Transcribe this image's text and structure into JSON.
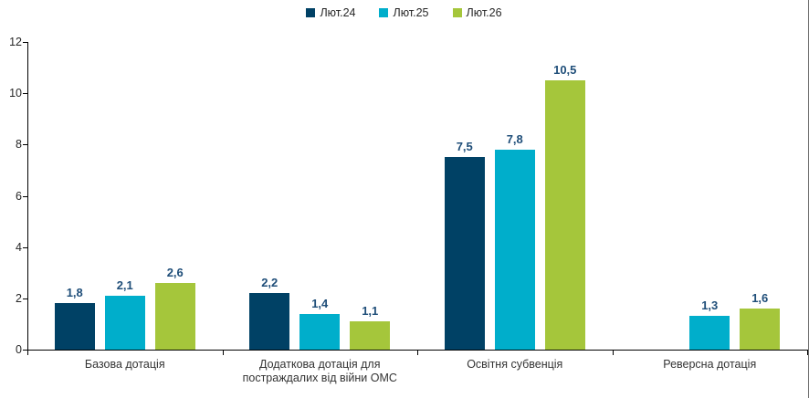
{
  "chart_data": {
    "type": "bar",
    "title": "",
    "categories": [
      "Базова дотація",
      "Додаткова дотація для постраждалих від війни ОМС",
      "Освітня субвенція",
      "Реверсна дотація"
    ],
    "series": [
      {
        "name": "Лют.24",
        "color": "#004165",
        "values": [
          1.8,
          2.2,
          7.5,
          null
        ],
        "labels": [
          "1,8",
          "2,2",
          "7,5",
          ""
        ]
      },
      {
        "name": "Лют.25",
        "color": "#00AECB",
        "values": [
          2.1,
          1.4,
          7.8,
          1.3
        ],
        "labels": [
          "2,1",
          "1,4",
          "7,8",
          "1,3"
        ]
      },
      {
        "name": "Лют.26",
        "color": "#A5C63B",
        "values": [
          2.6,
          1.1,
          10.5,
          1.6
        ],
        "labels": [
          "2,6",
          "1,1",
          "10,5",
          "1,6"
        ]
      }
    ],
    "xlabel": "",
    "ylabel": "",
    "ylim": [
      0,
      12
    ],
    "yticks": [
      0,
      2,
      4,
      6,
      8,
      10,
      12
    ],
    "grid": false,
    "legend_position": "top",
    "value_label_color": "#1F4E79",
    "axis_color": "#000000"
  }
}
